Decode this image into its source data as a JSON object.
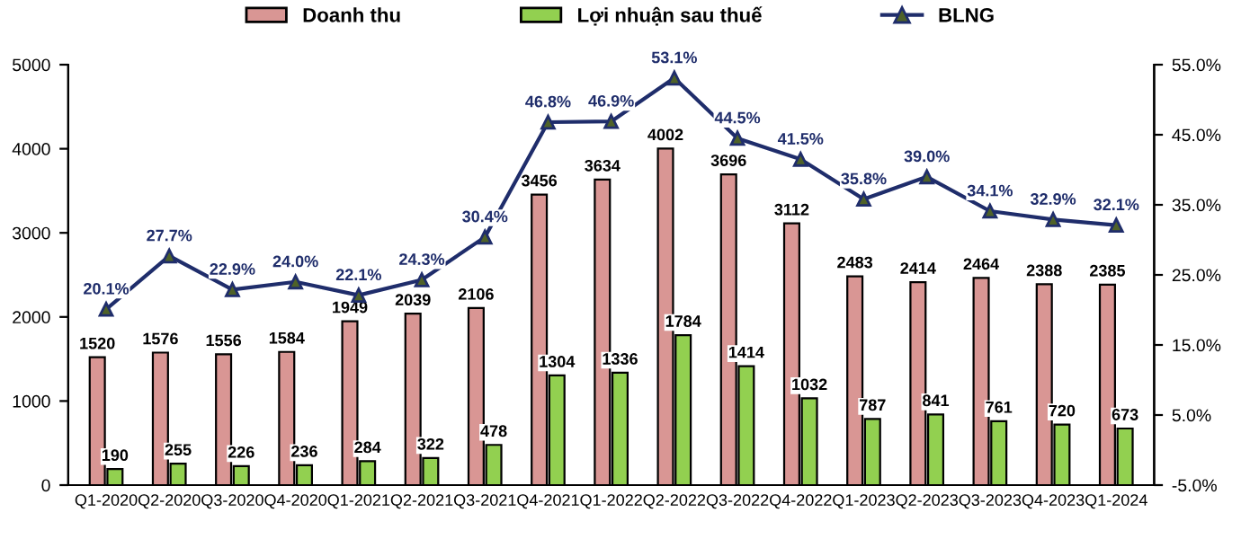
{
  "chart_data": {
    "type": "bar",
    "categories": [
      "Q1-2020",
      "Q2-2020",
      "Q3-2020",
      "Q4-2020",
      "Q1-2021",
      "Q2-2021",
      "Q3-2021",
      "Q4-2021",
      "Q1-2022",
      "Q2-2022",
      "Q3-2022",
      "Q4-2022",
      "Q1-2023",
      "Q2-2023",
      "Q3-2023",
      "Q4-2023",
      "Q1-2024"
    ],
    "series": [
      {
        "name": "Doanh thu",
        "color": "#d99694",
        "values": [
          1520,
          1576,
          1556,
          1584,
          1949,
          2039,
          2106,
          3456,
          3634,
          4002,
          3696,
          3112,
          2483,
          2414,
          2464,
          2388,
          2385
        ]
      },
      {
        "name": "Lợi nhuận sau thuế",
        "color": "#92d050",
        "values": [
          190,
          255,
          226,
          236,
          284,
          322,
          478,
          1304,
          1336,
          1784,
          1414,
          1032,
          787,
          841,
          761,
          720,
          673
        ]
      },
      {
        "name": "BLNG",
        "type": "line",
        "axis": "y2",
        "color": "#1f2d6b",
        "marker": "triangle",
        "value_labels": [
          "20.1%",
          "27.7%",
          "22.9%",
          "24.0%",
          "22.1%",
          "24.3%",
          "30.4%",
          "46.8%",
          "46.9%",
          "53.1%",
          "44.5%",
          "41.5%",
          "35.8%",
          "39.0%",
          "34.1%",
          "32.9%",
          "32.1%"
        ],
        "values": [
          20.1,
          27.7,
          22.9,
          24.0,
          22.1,
          24.3,
          30.4,
          46.8,
          46.9,
          53.1,
          44.5,
          41.5,
          35.8,
          39.0,
          34.1,
          32.9,
          32.1
        ]
      }
    ],
    "data_labels": true,
    "ylim": [
      0,
      5000
    ],
    "yticks": [
      0,
      1000,
      2000,
      3000,
      4000,
      5000
    ],
    "y2lim": [
      -5,
      55
    ],
    "y2ticks": [
      {
        "value": -5,
        "label": "-5.0%"
      },
      {
        "value": 5,
        "label": "5.0%"
      },
      {
        "value": 15,
        "label": "15.0%"
      },
      {
        "value": 25,
        "label": "25.0%"
      },
      {
        "value": 35,
        "label": "35.0%"
      },
      {
        "value": 45,
        "label": "45.0%"
      },
      {
        "value": 55,
        "label": "55.0%"
      }
    ],
    "grid": false,
    "legend": "top"
  }
}
